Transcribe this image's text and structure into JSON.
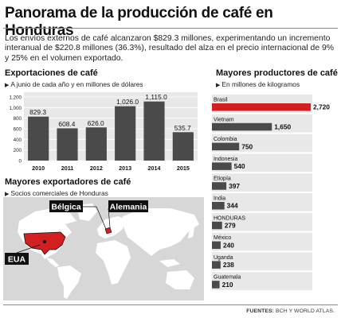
{
  "title": "Panorama de la producción de café en Honduras",
  "intro": "Los envíos externos de café alcanzaron $829.3 millones, experimentando un incremento interanual de $220.8 millones (36.3%), resultado del alza en el precio internacional de 9% y 25% en el volumen exportado.",
  "exports": {
    "title": "Exportaciones de café",
    "subtitle": "A junio de cada año y en millones de dólares"
  },
  "producers": {
    "title": "Mayores productores de café",
    "subtitle": "En millones de kilogramos"
  },
  "exporters_map": {
    "title": "Mayores exportadores de café",
    "subtitle": "Socios comerciales de Honduras",
    "labels": [
      "Bélgica",
      "Alemania",
      "EUA"
    ],
    "highlight_color": "#d21f1f"
  },
  "source": {
    "label": "FUENTES:",
    "text": "BCH Y WORLD ATLAS."
  },
  "colors": {
    "bar": "#4a4a4a",
    "highlight": "#d21f1f",
    "panel": "#e8e8e8",
    "grid": "#cfcfcf"
  },
  "chart_data": [
    {
      "type": "bar",
      "categories": [
        "2010",
        "2011",
        "2012",
        "2013",
        "2014",
        "2015"
      ],
      "values": [
        829.3,
        608.4,
        626.0,
        1026.0,
        1115.0,
        535.7
      ],
      "value_labels": [
        "829.3",
        "608.4",
        "626.0",
        "1,026.0",
        "1,115.0",
        "535.7"
      ],
      "yticks": [
        0,
        200,
        400,
        600,
        800,
        1000,
        1200
      ],
      "ytick_labels": [
        "0",
        "200",
        "400",
        "600",
        "800",
        "1,000",
        "1,200"
      ],
      "ylim": [
        0,
        1200
      ],
      "grid": true
    },
    {
      "type": "bar",
      "orientation": "horizontal",
      "categories": [
        "Brasil",
        "Vietnam",
        "Colombia",
        "Indonesia",
        "Etiopía",
        "India",
        "HONDURAS",
        "México",
        "Uganda",
        "Guatemala"
      ],
      "values": [
        2720,
        1650,
        750,
        540,
        397,
        344,
        279,
        240,
        238,
        210
      ],
      "value_labels": [
        "2,720",
        "1,650",
        "750",
        "540",
        "397",
        "344",
        "279",
        "240",
        "238",
        "210"
      ],
      "highlight_category": "Brasil",
      "xlim": [
        0,
        2720
      ]
    }
  ]
}
